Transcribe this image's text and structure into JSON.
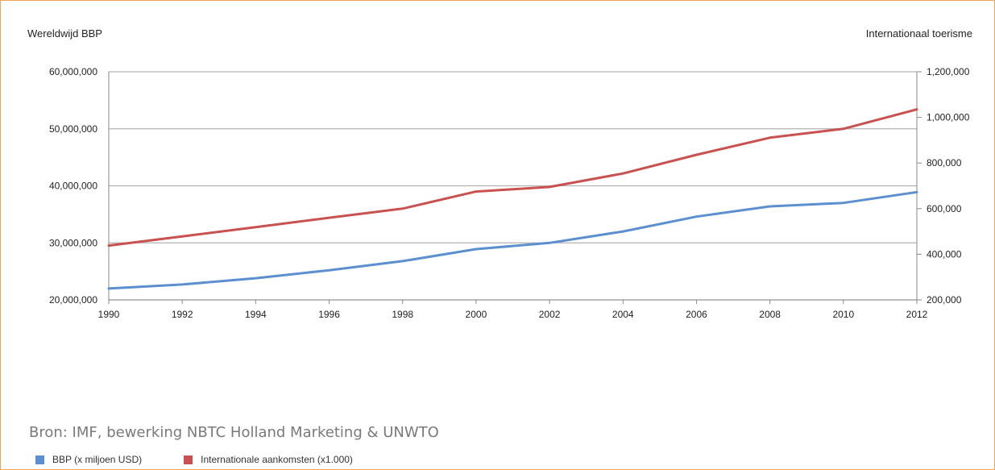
{
  "chart_data": {
    "type": "line",
    "left_axis_title": "Wereldwijd BBP",
    "right_axis_title": "Internationaal toerisme",
    "x": [
      1990,
      1992,
      1994,
      1996,
      1998,
      2000,
      2002,
      2004,
      2006,
      2008,
      2010,
      2012
    ],
    "x_tick_labels": [
      "1990",
      "1992",
      "1994",
      "1996",
      "1998",
      "2000",
      "2002",
      "2004",
      "2006",
      "2008",
      "2010",
      "2012"
    ],
    "y_left_range": [
      20000000,
      60000000
    ],
    "y_left_ticks": [
      20000000,
      30000000,
      40000000,
      50000000,
      60000000
    ],
    "y_left_tick_labels": [
      "20,000,000",
      "30,000,000",
      "40,000,000",
      "50,000,000",
      "60,000,000"
    ],
    "y_right_range": [
      200000,
      1200000
    ],
    "y_right_ticks": [
      200000,
      400000,
      600000,
      800000,
      1000000,
      1200000
    ],
    "y_right_tick_labels": [
      "200,000",
      "400,000",
      "600,000",
      "800,000",
      "1,000,000",
      "1,200,000"
    ],
    "grid": true,
    "series": [
      {
        "name": "BBP (x miljoen USD)",
        "axis": "left",
        "color": "#5b8fcf",
        "values": [
          22000000,
          22700000,
          23800000,
          25200000,
          26800000,
          28900000,
          30000000,
          32000000,
          34600000,
          36400000,
          37000000,
          38900000
        ]
      },
      {
        "name": "Internationale aankomsten (x1.000)",
        "axis": "right",
        "color": "#c9514f",
        "values": [
          438000,
          478000,
          519000,
          560000,
          600000,
          675000,
          695000,
          754000,
          836000,
          911000,
          950000,
          1035000
        ]
      }
    ],
    "legend_position": "bottom-left"
  },
  "source_text": "Bron: IMF, bewerking NBTC Holland Marketing & UNWTO",
  "colors": {
    "frame": "#f2a35a",
    "grid": "#b3b3b3",
    "axis": "#888888"
  }
}
